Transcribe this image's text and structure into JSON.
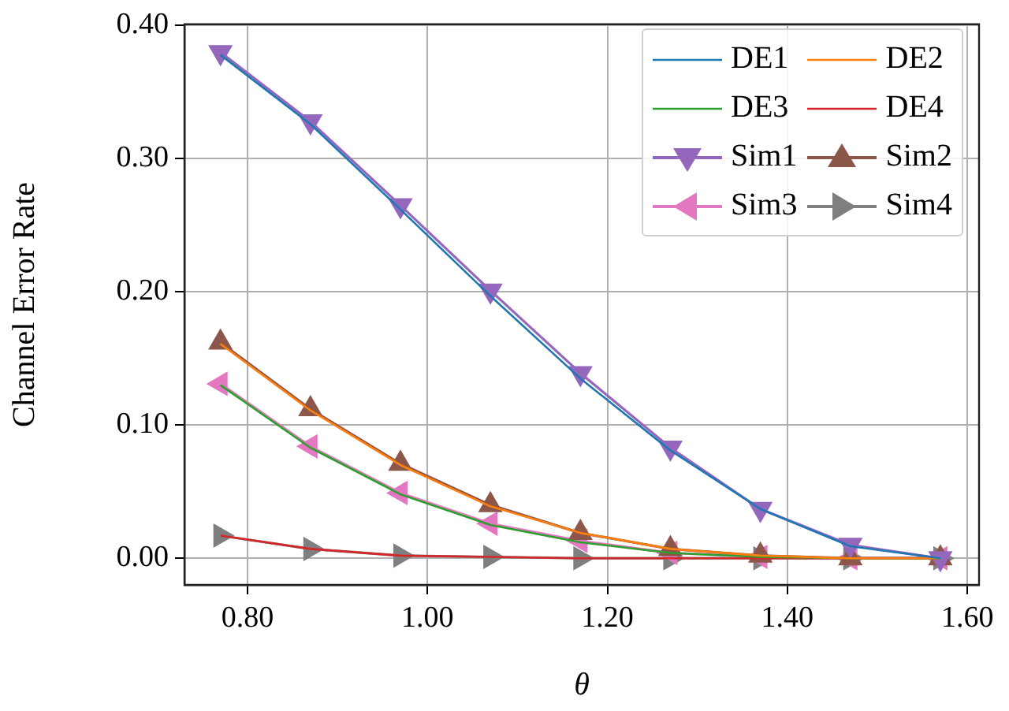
{
  "chart_data": {
    "type": "line",
    "xlabel": "θ",
    "ylabel": "Channel Error Rate",
    "x": [
      0.77,
      0.87,
      0.97,
      1.07,
      1.17,
      1.27,
      1.37,
      1.47,
      1.57
    ],
    "series": [
      {
        "name": "DE1",
        "color": "#1f77b4",
        "marker": "none",
        "values": [
          0.378,
          0.326,
          0.262,
          0.197,
          0.135,
          0.081,
          0.037,
          0.009,
          0
        ]
      },
      {
        "name": "DE2",
        "color": "#ff7f0e",
        "marker": "none",
        "values": [
          0.161,
          0.111,
          0.07,
          0.039,
          0.019,
          0.007,
          0.002,
          0,
          0
        ]
      },
      {
        "name": "DE3",
        "color": "#2ca02c",
        "marker": "none",
        "values": [
          0.13,
          0.083,
          0.048,
          0.025,
          0.012,
          0.004,
          0.001,
          0,
          0
        ]
      },
      {
        "name": "DE4",
        "color": "#d62728",
        "marker": "none",
        "values": [
          0.017,
          0.007,
          0.002,
          0.001,
          0,
          0,
          0,
          0,
          0
        ]
      },
      {
        "name": "Sim1",
        "color": "#9467bd",
        "marker": "triangle_down",
        "values": [
          0.38,
          0.328,
          0.265,
          0.201,
          0.139,
          0.083,
          0.037,
          0.01,
          0
        ]
      },
      {
        "name": "Sim2",
        "color": "#8c564b",
        "marker": "triangle_up",
        "values": [
          0.162,
          0.112,
          0.071,
          0.04,
          0.019,
          0.007,
          0.002,
          0,
          0
        ]
      },
      {
        "name": "Sim3",
        "color": "#e377c2",
        "marker": "triangle_left",
        "values": [
          0.131,
          0.084,
          0.049,
          0.026,
          0.013,
          0.004,
          0.001,
          0,
          0
        ]
      },
      {
        "name": "Sim4",
        "color": "#7f7f7f",
        "marker": "triangle_right",
        "values": [
          0.017,
          0.007,
          0.002,
          0.001,
          0,
          0,
          0,
          0,
          0
        ]
      }
    ],
    "xlim": [
      0.73,
      1.613
    ],
    "ylim": [
      -0.02,
      0.401
    ],
    "xticks": [
      {
        "value": 0.8,
        "label": "0.80"
      },
      {
        "value": 1.0,
        "label": "1.00"
      },
      {
        "value": 1.2,
        "label": "1.20"
      },
      {
        "value": 1.4,
        "label": "1.40"
      },
      {
        "value": 1.6,
        "label": "1.60"
      }
    ],
    "yticks": [
      {
        "value": 0,
        "label": "0.00"
      },
      {
        "value": 0.1,
        "label": "0.10"
      },
      {
        "value": 0.2,
        "label": "0.20"
      },
      {
        "value": 0.3,
        "label": "0.30"
      },
      {
        "value": 0.4,
        "label": "0.40"
      }
    ],
    "grid": true,
    "legend": "top right"
  }
}
